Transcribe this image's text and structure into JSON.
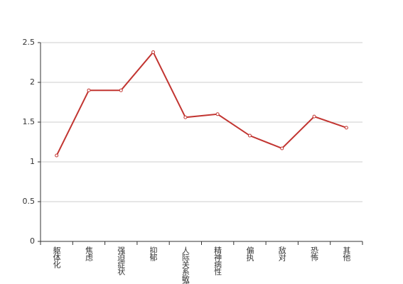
{
  "chart_data": {
    "type": "line",
    "categories": [
      "躯体化",
      "焦虑",
      "强迫症状",
      "抑郁",
      "人际关系敏感",
      "精神病性",
      "偏执",
      "敌对",
      "恐怖",
      "其他"
    ],
    "values": [
      1.08,
      1.9,
      1.9,
      2.38,
      1.56,
      1.6,
      1.33,
      1.17,
      1.57,
      1.43
    ],
    "color": "#c23531",
    "ylim": [
      0,
      2.5
    ],
    "yticks": [
      0,
      0.5,
      1,
      1.5,
      2,
      2.5
    ],
    "grid": true
  }
}
